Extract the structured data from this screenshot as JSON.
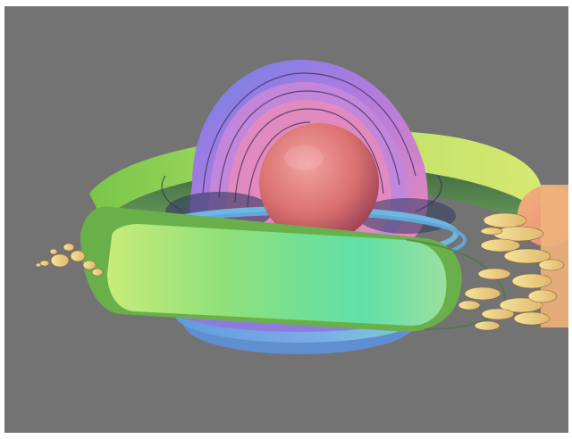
{
  "scene": {
    "background_color": "#737373",
    "frame_color": "#ffffff",
    "object": "3d-fractal-render",
    "palette": {
      "core_sphere": "#d9706f",
      "inner_rings": [
        "#e08ac0",
        "#b07be0",
        "#7a86e6",
        "#6fb6e0"
      ],
      "outer_band": [
        "#8fdb5a",
        "#c9e86a",
        "#5fe0a8"
      ],
      "spike_clusters": [
        "#f2d98a",
        "#e8b070",
        "#f4c48a"
      ]
    }
  }
}
